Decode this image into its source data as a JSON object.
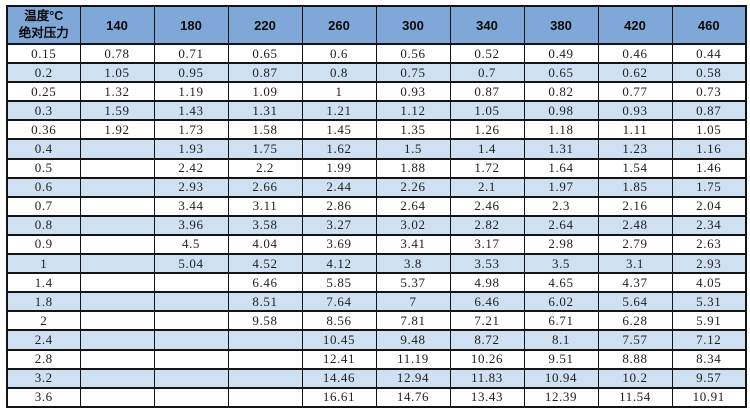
{
  "chart_data": {
    "type": "table",
    "corner_header": {
      "line1": "温度°C",
      "line2": "绝对压力"
    },
    "columns": [
      "140",
      "180",
      "220",
      "260",
      "300",
      "340",
      "380",
      "420",
      "460"
    ],
    "rows": [
      {
        "label": "0.15",
        "values": [
          "0.78",
          "0.71",
          "0.65",
          "0.6",
          "0.56",
          "0.52",
          "0.49",
          "0.46",
          "0.44"
        ]
      },
      {
        "label": "0.2",
        "values": [
          "1.05",
          "0.95",
          "0.87",
          "0.8",
          "0.75",
          "0.7",
          "0.65",
          "0.62",
          "0.58"
        ]
      },
      {
        "label": "0.25",
        "values": [
          "1.32",
          "1.19",
          "1.09",
          "1",
          "0.93",
          "0.87",
          "0.82",
          "0.77",
          "0.73"
        ]
      },
      {
        "label": "0.3",
        "values": [
          "1.59",
          "1.43",
          "1.31",
          "1.21",
          "1.12",
          "1.05",
          "0.98",
          "0.93",
          "0.87"
        ]
      },
      {
        "label": "0.36",
        "values": [
          "1.92",
          "1.73",
          "1.58",
          "1.45",
          "1.35",
          "1.26",
          "1.18",
          "1.11",
          "1.05"
        ]
      },
      {
        "label": "0.4",
        "values": [
          "",
          "1.93",
          "1.75",
          "1.62",
          "1.5",
          "1.4",
          "1.31",
          "1.23",
          "1.16"
        ]
      },
      {
        "label": "0.5",
        "values": [
          "",
          "2.42",
          "2.2",
          "1.99",
          "1.88",
          "1.72",
          "1.64",
          "1.54",
          "1.46"
        ]
      },
      {
        "label": "0.6",
        "values": [
          "",
          "2.93",
          "2.66",
          "2.44",
          "2.26",
          "2.1",
          "1.97",
          "1.85",
          "1.75"
        ]
      },
      {
        "label": "0.7",
        "values": [
          "",
          "3.44",
          "3.11",
          "2.86",
          "2.64",
          "2.46",
          "2.3",
          "2.16",
          "2.04"
        ]
      },
      {
        "label": "0.8",
        "values": [
          "",
          "3.96",
          "3.58",
          "3.27",
          "3.02",
          "2.82",
          "2.64",
          "2.48",
          "2.34"
        ]
      },
      {
        "label": "0.9",
        "values": [
          "",
          "4.5",
          "4.04",
          "3.69",
          "3.41",
          "3.17",
          "2.98",
          "2.79",
          "2.63"
        ]
      },
      {
        "label": "1",
        "values": [
          "",
          "5.04",
          "4.52",
          "4.12",
          "3.8",
          "3.53",
          "3.5",
          "3.1",
          "2.93"
        ]
      },
      {
        "label": "1.4",
        "values": [
          "",
          "",
          "6.46",
          "5.85",
          "5.37",
          "4.98",
          "4.65",
          "4.37",
          "4.05"
        ]
      },
      {
        "label": "1.8",
        "values": [
          "",
          "",
          "8.51",
          "7.64",
          "7",
          "6.46",
          "6.02",
          "5.64",
          "5.31"
        ]
      },
      {
        "label": "2",
        "values": [
          "",
          "",
          "9.58",
          "8.56",
          "7.81",
          "7.21",
          "6.71",
          "6.28",
          "5.91"
        ]
      },
      {
        "label": "2.4",
        "values": [
          "",
          "",
          "",
          "10.45",
          "9.48",
          "8.72",
          "8.1",
          "7.57",
          "7.12"
        ]
      },
      {
        "label": "2.8",
        "values": [
          "",
          "",
          "",
          "12.41",
          "11.19",
          "10.26",
          "9.51",
          "8.88",
          "8.34"
        ]
      },
      {
        "label": "3.2",
        "values": [
          "",
          "",
          "",
          "14.46",
          "12.94",
          "11.83",
          "10.94",
          "10.2",
          "9.57"
        ]
      },
      {
        "label": "3.6",
        "values": [
          "",
          "",
          "",
          "16.61",
          "14.76",
          "13.43",
          "12.39",
          "11.54",
          "10.91"
        ]
      }
    ]
  },
  "colors": {
    "header_bg": "#7FA8D9",
    "stripe_bg": "#CFE0F3",
    "border": "#141414"
  }
}
